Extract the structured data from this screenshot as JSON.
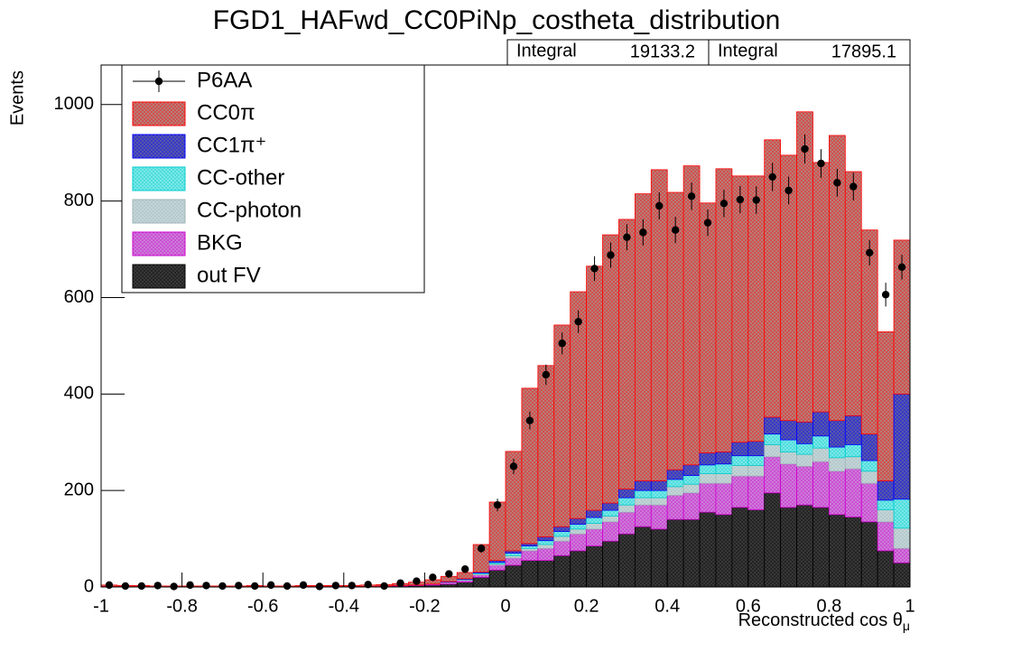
{
  "chart_data": {
    "type": "stacked_histogram",
    "title": "FGD1_HAFwd_CC0PiNp_costheta_distribution",
    "x_label": {
      "text": "Reconstructed cos θ",
      "subscript": "μ"
    },
    "y_label": "Events",
    "bins": [
      -1,
      -0.96,
      -0.92,
      -0.88,
      -0.84,
      -0.8,
      -0.76,
      -0.72,
      -0.68,
      -0.64,
      -0.6,
      -0.56,
      -0.52,
      -0.48,
      -0.44,
      -0.4,
      -0.36,
      -0.32,
      -0.28,
      -0.24,
      -0.2,
      -0.16,
      -0.12,
      -0.08,
      -0.04,
      0,
      0.04,
      0.08,
      0.12,
      0.16,
      0.2,
      0.24,
      0.28,
      0.32,
      0.36,
      0.4,
      0.44,
      0.48,
      0.52,
      0.56,
      0.6,
      0.64,
      0.68,
      0.72,
      0.76,
      0.8,
      0.84,
      0.88,
      0.92,
      0.96,
      1
    ],
    "xlim": [
      -1,
      1
    ],
    "xticks": [
      -1,
      -0.8,
      -0.6,
      -0.4,
      -0.2,
      0,
      0.2,
      0.4,
      0.6,
      0.8,
      1
    ],
    "ylim": [
      0,
      1082
    ],
    "yticks": [
      0,
      200,
      400,
      600,
      800,
      1000
    ],
    "legend": "top-left",
    "series": [
      {
        "name": "CC0π",
        "color": "#b5817c",
        "line_color": "#ff0000",
        "values": [
          3,
          2,
          2,
          2,
          2,
          2,
          2,
          2,
          2,
          2,
          2,
          2,
          2,
          2,
          2,
          2,
          3,
          3,
          4,
          6,
          9,
          11,
          13,
          57,
          121,
          206,
          322,
          355,
          418,
          470,
          506,
          556,
          559,
          595,
          645,
          575,
          620,
          518,
          587,
          552,
          550,
          575,
          550,
          643,
          517,
          591,
          506,
          423,
          309,
          319
        ]
      },
      {
        "name": "CC1π⁺",
        "color": "#5a5aa8",
        "line_color": "#0000ff",
        "values": [
          0,
          0,
          0,
          0,
          0,
          0,
          0,
          0,
          0,
          0,
          0,
          0,
          0,
          0,
          0,
          0,
          0,
          0,
          0,
          0,
          0,
          1,
          1,
          2,
          4,
          5,
          5,
          8,
          10,
          12,
          15,
          15,
          18,
          20,
          20,
          20,
          22,
          25,
          25,
          28,
          30,
          35,
          40,
          45,
          50,
          55,
          60,
          55,
          40,
          218
        ]
      },
      {
        "name": "CC-other",
        "color": "#7fe8e8",
        "line_color": "#00cccc",
        "values": [
          0,
          0,
          0,
          0,
          0,
          0,
          0,
          0,
          0,
          0,
          0,
          0,
          0,
          0,
          0,
          0,
          0,
          0,
          0,
          0,
          0,
          0,
          1,
          2,
          3,
          5,
          5,
          8,
          10,
          10,
          12,
          12,
          15,
          15,
          15,
          15,
          18,
          18,
          20,
          20,
          20,
          22,
          25,
          22,
          25,
          22,
          25,
          22,
          20,
          60
        ]
      },
      {
        "name": "CC-photon",
        "color": "#c4d6d8",
        "line_color": "#9fb5b8",
        "values": [
          0,
          0,
          0,
          0,
          0,
          0,
          0,
          0,
          0,
          0,
          0,
          0,
          0,
          0,
          0,
          0,
          0,
          0,
          0,
          0,
          0,
          1,
          1,
          2,
          3,
          5,
          5,
          8,
          10,
          10,
          12,
          12,
          15,
          15,
          15,
          18,
          18,
          20,
          20,
          22,
          22,
          25,
          25,
          25,
          28,
          28,
          25,
          25,
          25,
          42
        ]
      },
      {
        "name": "BKG",
        "color": "#cc80d8",
        "line_color": "#cc00cc",
        "values": [
          0,
          0,
          0,
          0,
          0,
          0,
          0,
          0,
          0,
          0,
          0,
          0,
          0,
          0,
          0,
          0,
          0,
          1,
          1,
          1,
          2,
          3,
          4,
          5,
          10,
          15,
          20,
          25,
          30,
          35,
          35,
          40,
          45,
          45,
          50,
          50,
          55,
          60,
          65,
          65,
          70,
          75,
          90,
          80,
          95,
          90,
          100,
          80,
          60,
          30
        ]
      },
      {
        "name": "out FV",
        "color": "#3a3a3a",
        "line_color": "#000000",
        "values": [
          1,
          1,
          1,
          0,
          0,
          0,
          0,
          0,
          0,
          1,
          0,
          0,
          1,
          1,
          1,
          1,
          1,
          1,
          2,
          3,
          4,
          6,
          10,
          20,
          35,
          45,
          55,
          55,
          65,
          75,
          85,
          95,
          110,
          125,
          120,
          140,
          140,
          155,
          150,
          165,
          160,
          195,
          165,
          170,
          165,
          150,
          145,
          135,
          75,
          50
        ]
      }
    ],
    "data_series": {
      "name": "P6AA",
      "color": "#000000",
      "values": [
        4,
        2,
        2,
        3,
        1,
        4,
        3,
        2,
        3,
        2,
        4,
        2,
        4,
        1,
        3,
        3,
        5,
        2,
        8,
        12,
        20,
        27,
        37,
        80,
        170,
        250,
        345,
        440,
        505,
        550,
        660,
        688,
        725,
        735,
        790,
        740,
        810,
        755,
        795,
        803,
        802,
        850,
        822,
        908,
        878,
        838,
        830,
        693,
        606,
        663
      ],
      "errors": [
        2,
        1.4,
        1.4,
        1.7,
        1,
        2,
        1.7,
        1.4,
        1.7,
        1.4,
        2,
        1.4,
        2,
        1,
        1.7,
        1.7,
        2.2,
        1.4,
        2.8,
        3.5,
        4.5,
        5.2,
        6.1,
        8.9,
        13,
        15.8,
        18.6,
        21,
        22.5,
        23.5,
        25.7,
        26.2,
        26.9,
        27.1,
        28.1,
        27.2,
        28.5,
        27.5,
        28.2,
        28.3,
        28.3,
        29.2,
        28.7,
        30.1,
        29.6,
        28.9,
        28.8,
        26.3,
        24.6,
        25.7
      ]
    },
    "stats": [
      {
        "label": "Integral",
        "value": "19133.2"
      },
      {
        "label": "Integral",
        "value": "17895.1"
      }
    ]
  }
}
